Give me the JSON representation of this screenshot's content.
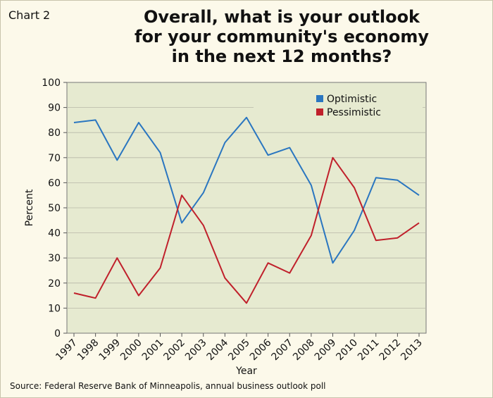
{
  "chart_label": "Chart 2",
  "title_lines": [
    "Overall, what is your outlook",
    "for your community's economy",
    "in the next 12 months?"
  ],
  "source": "Source: Federal Reserve Bank of Minneapolis, annual business outlook poll",
  "colors": {
    "optimistic": "#2a76c0",
    "pessimistic": "#c0202b",
    "plot_bg": "#e6ead0",
    "grid": "#b8b8a8"
  },
  "chart_data": {
    "type": "line",
    "title": "Overall, what is your outlook for your community's economy in the next 12 months?",
    "xlabel": "Year",
    "ylabel": "Percent",
    "x": [
      "1997",
      "1998",
      "1999",
      "2000",
      "2001",
      "2002",
      "2003",
      "2004",
      "2005",
      "2006",
      "2007",
      "2008",
      "2009",
      "2010",
      "2011",
      "2012",
      "2013"
    ],
    "ylim": [
      0,
      100
    ],
    "yticks": [
      0,
      10,
      20,
      30,
      40,
      50,
      60,
      70,
      80,
      90,
      100
    ],
    "grid": true,
    "legend_position": "top-right",
    "series": [
      {
        "name": "Optimistic",
        "values": [
          84,
          85,
          69,
          84,
          72,
          44,
          56,
          76,
          86,
          71,
          74,
          59,
          28,
          41,
          62,
          61,
          55
        ]
      },
      {
        "name": "Pessimistic",
        "values": [
          16,
          14,
          30,
          15,
          26,
          55,
          43,
          22,
          12,
          28,
          24,
          39,
          70,
          58,
          37,
          38,
          44
        ]
      }
    ]
  }
}
